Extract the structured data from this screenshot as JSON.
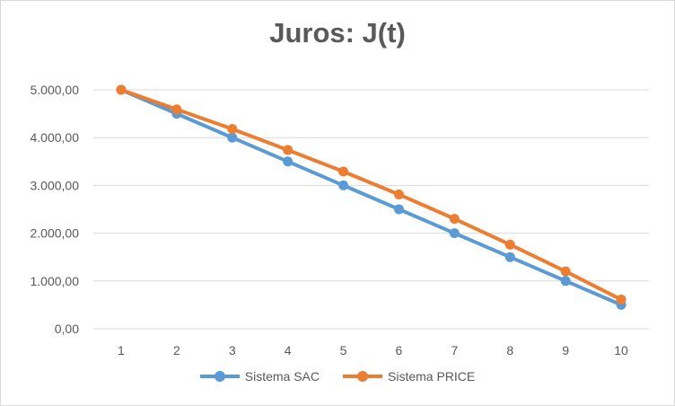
{
  "chart_data": {
    "type": "line",
    "title": "Juros: J(t)",
    "xlabel": "",
    "ylabel": "",
    "categories": [
      "1",
      "2",
      "3",
      "4",
      "5",
      "6",
      "7",
      "8",
      "9",
      "10"
    ],
    "ylim": [
      0,
      5000
    ],
    "yticks": [
      0,
      1000,
      2000,
      3000,
      4000,
      5000
    ],
    "ytick_labels": [
      "0,00",
      "1.000,00",
      "2.000,00",
      "3.000,00",
      "4.000,00",
      "5.000,00"
    ],
    "grid": true,
    "legend_position": "bottom",
    "series": [
      {
        "name": "Sistema SAC",
        "color": "#5b9bd5",
        "values": [
          5000,
          4500,
          4000,
          3500,
          3000,
          2500,
          2000,
          1500,
          1000,
          500
        ]
      },
      {
        "name": "Sistema PRICE",
        "color": "#ed7d31",
        "values": [
          5000,
          4590,
          4180,
          3740,
          3290,
          2810,
          2300,
          1760,
          1200,
          610
        ]
      }
    ]
  }
}
